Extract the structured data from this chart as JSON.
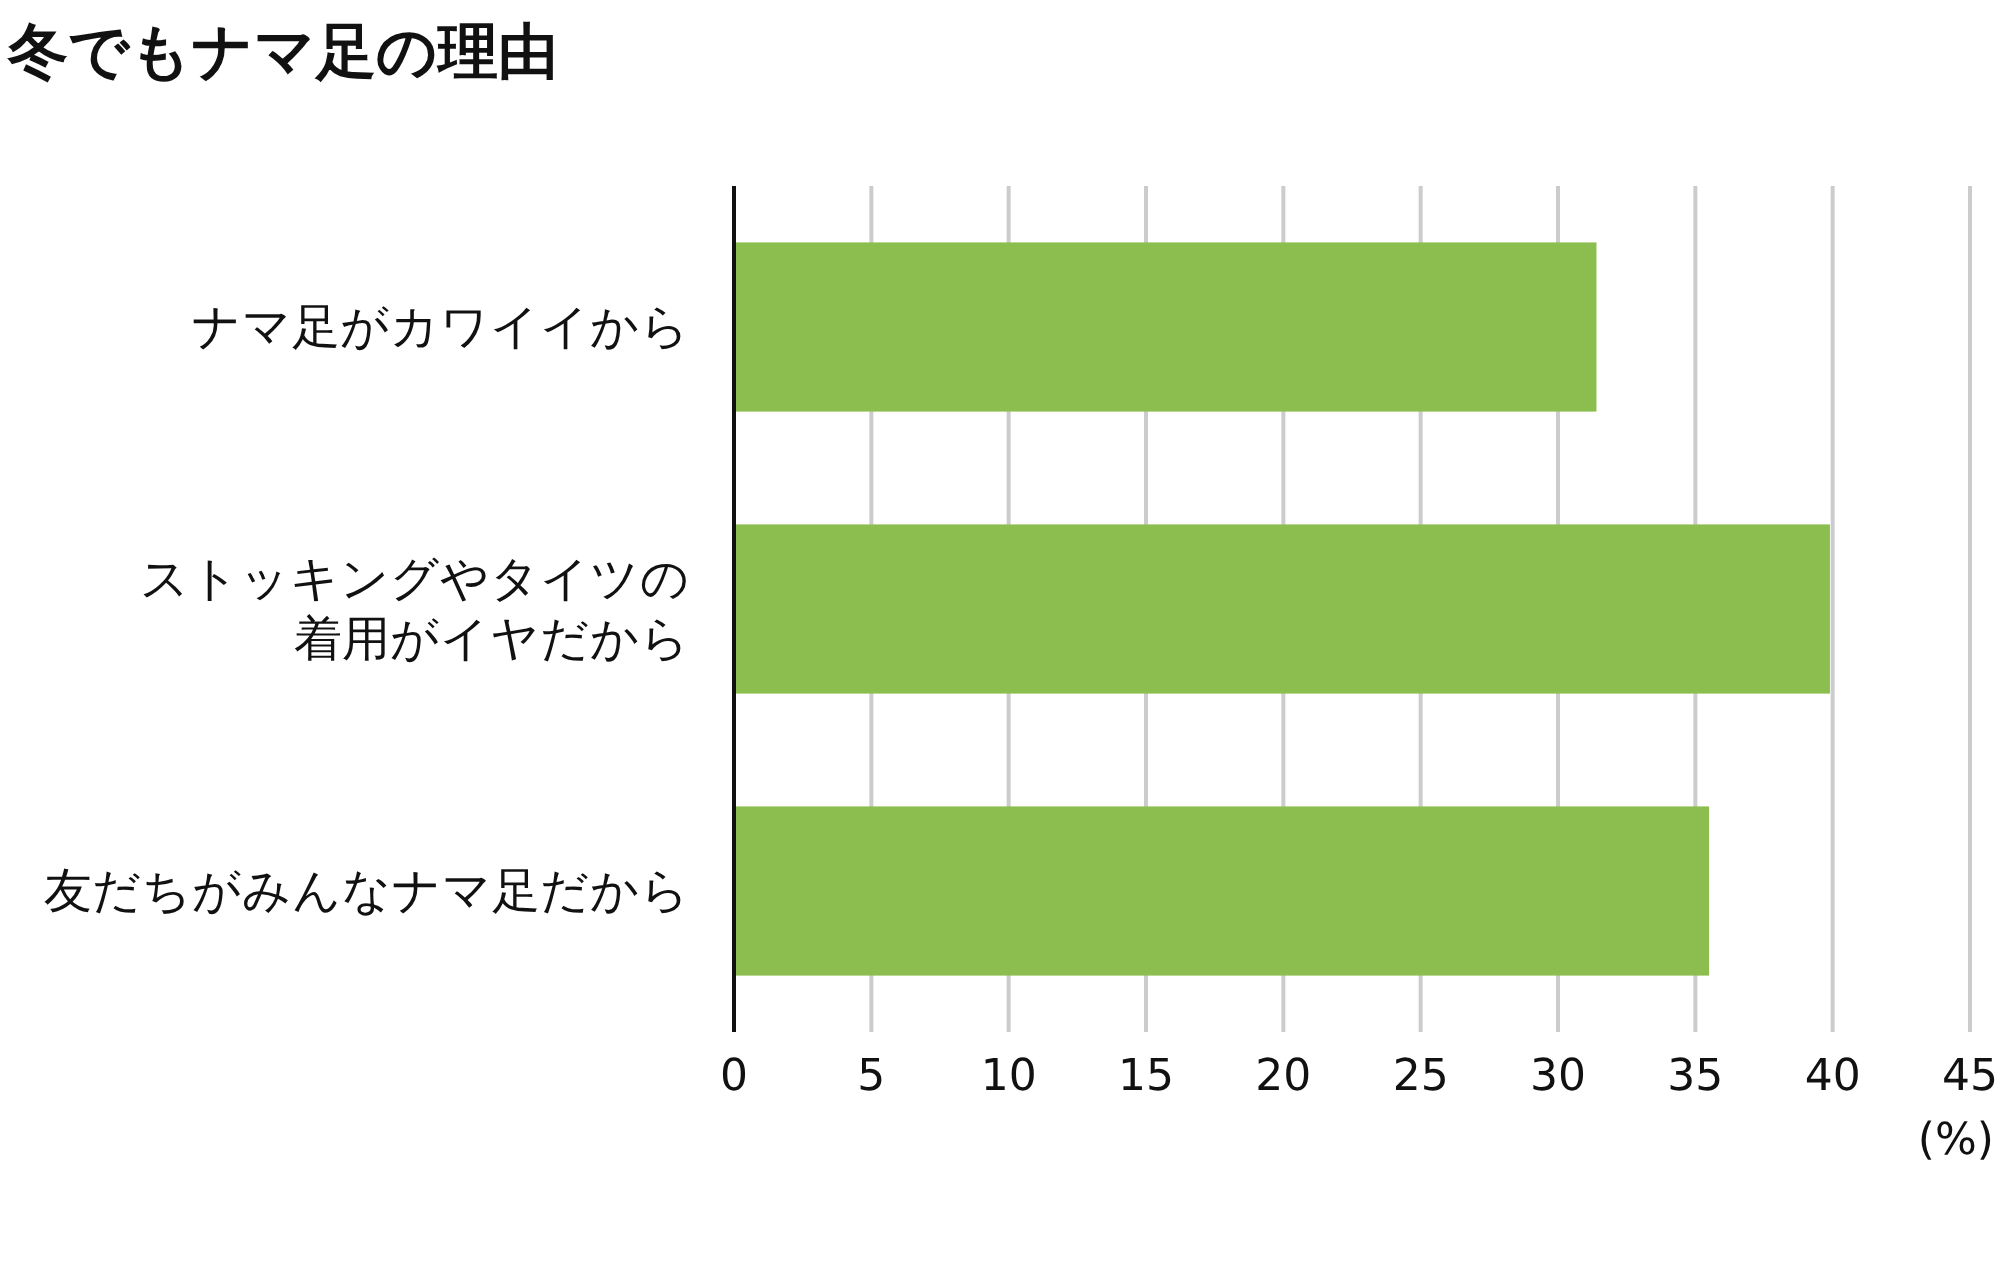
{
  "chart_data": {
    "type": "bar",
    "orientation": "horizontal",
    "title": "冬でもナマ足の理由",
    "categories": [
      "ナマ足がカワイイから",
      "ストッキングやタイツの着用がイヤだから",
      "友だちがみんなナマ足だから"
    ],
    "series": [
      {
        "color": "#8bbe4f",
        "values": [
          31.4,
          39.9,
          35.5
        ]
      }
    ],
    "xlabel": "(%)",
    "xlim": [
      0,
      45
    ],
    "xticks": [
      0,
      5,
      10,
      15,
      20,
      25,
      30,
      35,
      40,
      45
    ],
    "grid": "x"
  }
}
